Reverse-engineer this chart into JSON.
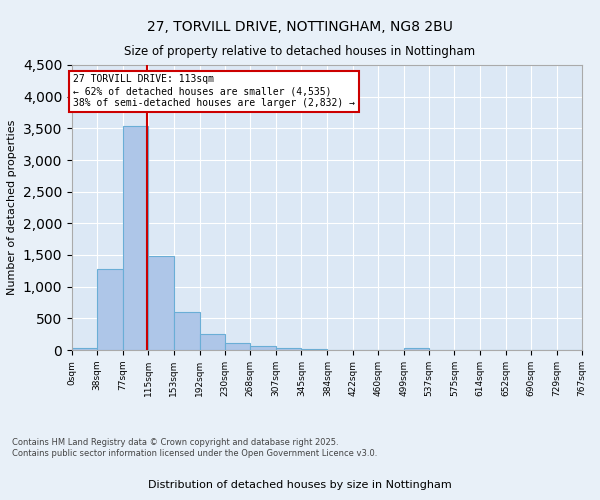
{
  "title_line1": "27, TORVILL DRIVE, NOTTINGHAM, NG8 2BU",
  "title_line2": "Size of property relative to detached houses in Nottingham",
  "xlabel": "Distribution of detached houses by size in Nottingham",
  "ylabel": "Number of detached properties",
  "bin_edges": [
    0,
    38,
    77,
    115,
    153,
    192,
    230,
    268,
    307,
    345,
    384,
    422,
    460,
    499,
    537,
    575,
    614,
    652,
    690,
    729,
    767
  ],
  "bar_heights": [
    30,
    1280,
    3530,
    1490,
    600,
    245,
    115,
    70,
    30,
    20,
    5,
    0,
    0,
    35,
    0,
    0,
    0,
    0,
    0,
    0
  ],
  "bar_color": "#aec6e8",
  "bar_edge_color": "#6aaed6",
  "vline_x": 113,
  "vline_color": "#cc0000",
  "ylim": [
    0,
    4500
  ],
  "yticks": [
    0,
    500,
    1000,
    1500,
    2000,
    2500,
    3000,
    3500,
    4000,
    4500
  ],
  "annotation_text": "27 TORVILL DRIVE: 113sqm\n← 62% of detached houses are smaller (4,535)\n38% of semi-detached houses are larger (2,832) →",
  "annotation_box_color": "#cc0000",
  "bg_color": "#e8f0f8",
  "plot_bg_color": "#dce8f5",
  "footer_line1": "Contains HM Land Registry data © Crown copyright and database right 2025.",
  "footer_line2": "Contains public sector information licensed under the Open Government Licence v3.0.",
  "tick_labels": [
    "0sqm",
    "38sqm",
    "77sqm",
    "115sqm",
    "153sqm",
    "192sqm",
    "230sqm",
    "268sqm",
    "307sqm",
    "345sqm",
    "384sqm",
    "422sqm",
    "460sqm",
    "499sqm",
    "537sqm",
    "575sqm",
    "614sqm",
    "652sqm",
    "690sqm",
    "729sqm",
    "767sqm"
  ]
}
